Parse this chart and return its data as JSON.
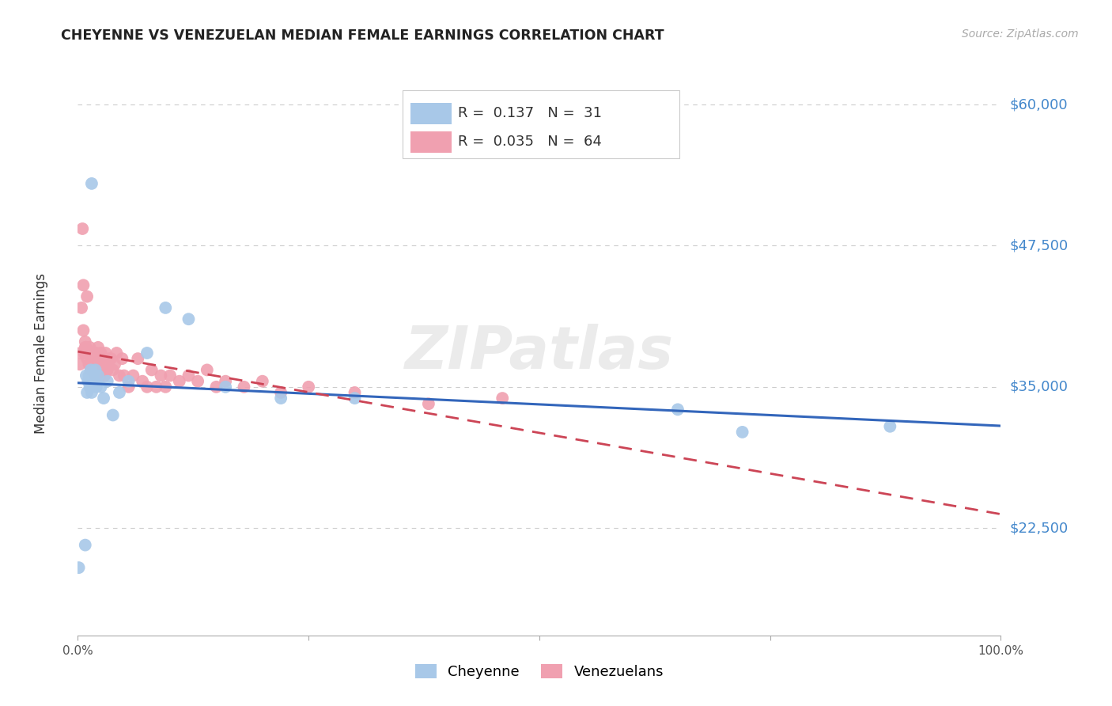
{
  "title": "CHEYENNE VS VENEZUELAN MEDIAN FEMALE EARNINGS CORRELATION CHART",
  "source": "Source: ZipAtlas.com",
  "ylabel": "Median Female Earnings",
  "ytick_labels": [
    "$60,000",
    "$47,500",
    "$35,000",
    "$22,500"
  ],
  "ytick_values": [
    60000,
    47500,
    35000,
    22500
  ],
  "ymin": 13000,
  "ymax": 63000,
  "xmin": 0.0,
  "xmax": 1.0,
  "watermark": "ZIPatlas",
  "cheyenne_x": [
    0.001,
    0.008,
    0.009,
    0.01,
    0.011,
    0.012,
    0.013,
    0.014,
    0.015,
    0.016,
    0.017,
    0.018,
    0.019,
    0.02,
    0.022,
    0.025,
    0.028,
    0.032,
    0.038,
    0.045,
    0.055,
    0.075,
    0.095,
    0.12,
    0.16,
    0.22,
    0.3,
    0.65,
    0.72,
    0.88,
    0.015
  ],
  "cheyenne_y": [
    19000,
    21000,
    36000,
    34500,
    35500,
    36000,
    35000,
    36500,
    34500,
    35500,
    36000,
    35500,
    36500,
    35000,
    36000,
    35000,
    34000,
    35500,
    32500,
    34500,
    35500,
    38000,
    42000,
    41000,
    35000,
    34000,
    34000,
    33000,
    31000,
    31500,
    53000
  ],
  "venezuelan_x": [
    0.002,
    0.003,
    0.004,
    0.005,
    0.006,
    0.007,
    0.008,
    0.009,
    0.01,
    0.011,
    0.012,
    0.013,
    0.014,
    0.015,
    0.016,
    0.017,
    0.018,
    0.019,
    0.02,
    0.021,
    0.022,
    0.023,
    0.024,
    0.025,
    0.026,
    0.027,
    0.028,
    0.029,
    0.03,
    0.032,
    0.034,
    0.036,
    0.038,
    0.04,
    0.042,
    0.045,
    0.048,
    0.05,
    0.055,
    0.06,
    0.065,
    0.07,
    0.075,
    0.08,
    0.085,
    0.09,
    0.095,
    0.1,
    0.11,
    0.12,
    0.13,
    0.14,
    0.15,
    0.16,
    0.18,
    0.2,
    0.22,
    0.25,
    0.3,
    0.38,
    0.46,
    0.006,
    0.008,
    0.01
  ],
  "venezuelan_y": [
    37000,
    38000,
    42000,
    49000,
    44000,
    38000,
    39000,
    38500,
    37500,
    38000,
    37000,
    38500,
    36500,
    37500,
    37000,
    38000,
    37500,
    36000,
    38000,
    37500,
    38500,
    37000,
    36000,
    38000,
    37500,
    36500,
    37000,
    36000,
    38000,
    36500,
    37500,
    37500,
    36500,
    37000,
    38000,
    36000,
    37500,
    36000,
    35000,
    36000,
    37500,
    35500,
    35000,
    36500,
    35000,
    36000,
    35000,
    36000,
    35500,
    36000,
    35500,
    36500,
    35000,
    35500,
    35000,
    35500,
    34500,
    35000,
    34500,
    33500,
    34000,
    40000,
    38500,
    43000
  ],
  "cheyenne_color": "#a8c8e8",
  "venezuelan_color": "#f0a0b0",
  "cheyenne_line_color": "#3366bb",
  "venezuelan_line_color": "#cc4455",
  "background_color": "#ffffff",
  "grid_color": "#cccccc",
  "legend_r_cheyenne": "R =  0.137",
  "legend_n_cheyenne": "N =  31",
  "legend_r_venezuelan": "R =  0.035",
  "legend_n_venezuelan": "N =  64"
}
